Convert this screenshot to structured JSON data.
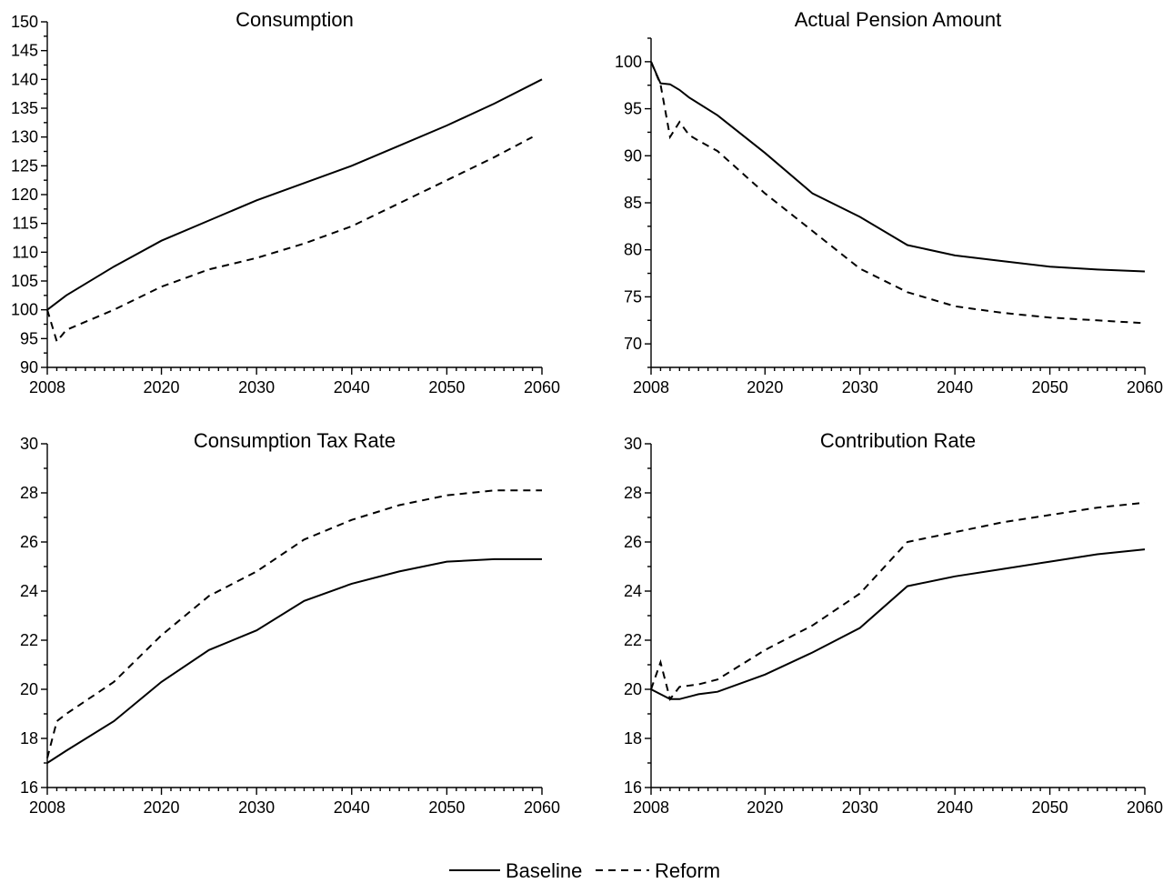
{
  "legend": {
    "series": [
      {
        "name": "Baseline",
        "style": "solid"
      },
      {
        "name": "Reform",
        "style": "dashed"
      }
    ],
    "position": "bottom-center"
  },
  "chart_data": [
    {
      "type": "line",
      "title": "Consumption",
      "xlim": [
        2008,
        2060
      ],
      "xticks": [
        2008,
        2020,
        2030,
        2040,
        2050,
        2060
      ],
      "ylim": [
        90,
        150
      ],
      "yticks": [
        90,
        95,
        100,
        105,
        110,
        115,
        120,
        125,
        130,
        135,
        140,
        145,
        150
      ],
      "series": [
        {
          "name": "Baseline",
          "style": "solid",
          "x": [
            2008,
            2010,
            2015,
            2020,
            2025,
            2030,
            2035,
            2040,
            2045,
            2050,
            2055,
            2060
          ],
          "y": [
            100,
            102.5,
            107.5,
            112,
            115.5,
            119,
            122,
            125,
            128.5,
            132,
            135.8,
            140
          ]
        },
        {
          "name": "Reform",
          "style": "dashed",
          "x": [
            2008,
            2009,
            2010,
            2015,
            2020,
            2025,
            2030,
            2035,
            2040,
            2045,
            2050,
            2055,
            2059
          ],
          "y": [
            100,
            94.5,
            96.5,
            100,
            104,
            107,
            109,
            111.5,
            114.5,
            118.5,
            122.5,
            126.5,
            130
          ]
        }
      ]
    },
    {
      "type": "line",
      "title": "Actual Pension Amount",
      "xlim": [
        2008,
        2060
      ],
      "xticks": [
        2008,
        2020,
        2030,
        2040,
        2050,
        2060
      ],
      "ylim": [
        67.5,
        102.5
      ],
      "yticks": [
        70,
        75,
        80,
        85,
        90,
        95,
        100
      ],
      "series": [
        {
          "name": "Baseline",
          "style": "solid",
          "x": [
            2008,
            2009,
            2010,
            2011,
            2012,
            2015,
            2020,
            2025,
            2030,
            2035,
            2040,
            2045,
            2050,
            2055,
            2060
          ],
          "y": [
            100,
            97.7,
            97.6,
            97,
            96.2,
            94.3,
            90.3,
            86,
            83.5,
            80.5,
            79.4,
            78.8,
            78.2,
            77.9,
            77.7
          ]
        },
        {
          "name": "Reform",
          "style": "dashed",
          "x": [
            2008,
            2009,
            2010,
            2011,
            2012,
            2013,
            2015,
            2020,
            2025,
            2030,
            2035,
            2040,
            2045,
            2050,
            2055,
            2060
          ],
          "y": [
            100,
            97.6,
            92,
            93.6,
            92.2,
            91.6,
            90.5,
            86,
            82,
            78,
            75.5,
            74,
            73.3,
            72.8,
            72.5,
            72.2
          ]
        }
      ]
    },
    {
      "type": "line",
      "title": "Consumption Tax Rate",
      "xlim": [
        2008,
        2060
      ],
      "xticks": [
        2008,
        2020,
        2030,
        2040,
        2050,
        2060
      ],
      "ylim": [
        16,
        30
      ],
      "yticks": [
        16,
        18,
        20,
        22,
        24,
        26,
        28,
        30
      ],
      "series": [
        {
          "name": "Baseline",
          "style": "solid",
          "x": [
            2008,
            2010,
            2015,
            2020,
            2025,
            2030,
            2035,
            2040,
            2045,
            2050,
            2055,
            2060
          ],
          "y": [
            17,
            17.5,
            18.7,
            20.3,
            21.6,
            22.4,
            23.6,
            24.3,
            24.8,
            25.2,
            25.3,
            25.3
          ]
        },
        {
          "name": "Reform",
          "style": "dashed",
          "x": [
            2008,
            2009,
            2010,
            2015,
            2020,
            2025,
            2030,
            2035,
            2040,
            2045,
            2050,
            2055,
            2060
          ],
          "y": [
            17.2,
            18.7,
            19,
            20.3,
            22.2,
            23.8,
            24.8,
            26.1,
            26.9,
            27.5,
            27.9,
            28.1,
            28.1
          ]
        }
      ]
    },
    {
      "type": "line",
      "title": "Contribution Rate",
      "xlim": [
        2008,
        2060
      ],
      "xticks": [
        2008,
        2020,
        2030,
        2040,
        2050,
        2060
      ],
      "ylim": [
        16,
        30
      ],
      "yticks": [
        16,
        18,
        20,
        22,
        24,
        26,
        28,
        30
      ],
      "series": [
        {
          "name": "Baseline",
          "style": "solid",
          "x": [
            2008,
            2010,
            2011,
            2013,
            2015,
            2020,
            2025,
            2030,
            2035,
            2040,
            2045,
            2050,
            2055,
            2060
          ],
          "y": [
            20,
            19.6,
            19.6,
            19.8,
            19.9,
            20.6,
            21.5,
            22.5,
            24.2,
            24.6,
            24.9,
            25.2,
            25.5,
            25.7
          ]
        },
        {
          "name": "Reform",
          "style": "dashed",
          "x": [
            2008,
            2009,
            2010,
            2011,
            2013,
            2015,
            2020,
            2025,
            2030,
            2035,
            2040,
            2045,
            2050,
            2055,
            2060
          ],
          "y": [
            20,
            21.1,
            19.6,
            20.1,
            20.2,
            20.4,
            21.6,
            22.6,
            23.9,
            26,
            26.4,
            26.8,
            27.1,
            27.4,
            27.6
          ]
        }
      ]
    }
  ]
}
